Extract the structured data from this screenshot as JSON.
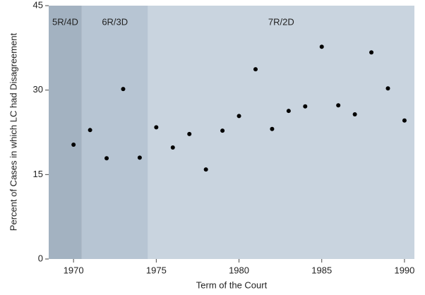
{
  "chart_data": {
    "type": "scatter",
    "x_label": "Term of the Court",
    "y_label": "Percent of Cases in which LC had Disagreement",
    "x": [
      1970,
      1971,
      1972,
      1973,
      1974,
      1975,
      1976,
      1977,
      1978,
      1979,
      1980,
      1981,
      1982,
      1983,
      1984,
      1985,
      1986,
      1987,
      1988,
      1989,
      1990
    ],
    "values": [
      20.3,
      22.9,
      17.9,
      30.2,
      18.0,
      23.4,
      19.8,
      22.2,
      15.9,
      22.8,
      25.4,
      33.7,
      23.1,
      26.3,
      27.1,
      37.7,
      27.3,
      25.7,
      36.7,
      30.3,
      24.6
    ],
    "color": "#000000",
    "xlim": [
      1968.5,
      1990.6
    ],
    "ylim": [
      0,
      45
    ],
    "xticks": [
      1970,
      1975,
      1980,
      1985,
      1990
    ],
    "yticks": [
      0,
      15,
      30,
      45
    ],
    "regions": [
      {
        "label": "5R/4D",
        "start": 1968.5,
        "end": 1970.5,
        "color": "#a3b2c1"
      },
      {
        "label": "6R/3D",
        "start": 1970.5,
        "end": 1974.5,
        "color": "#b7c5d3"
      },
      {
        "label": "7R/2D",
        "start": 1974.5,
        "end": 1990.6,
        "color": "#c9d4df"
      }
    ]
  }
}
